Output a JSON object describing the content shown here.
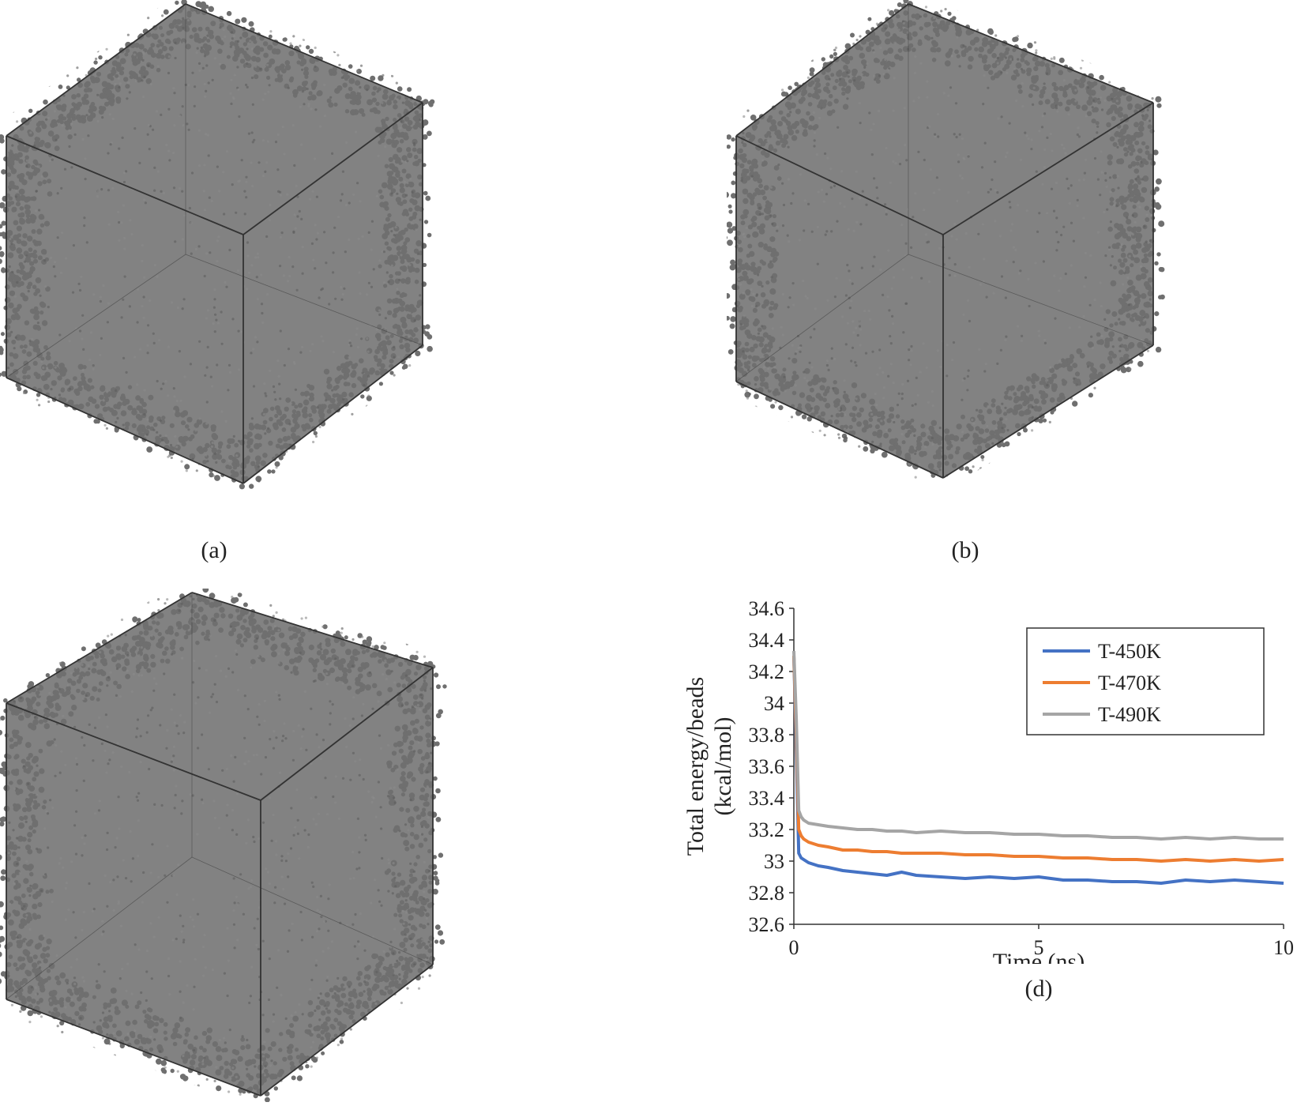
{
  "panels": {
    "a": {
      "caption": "(a)"
    },
    "b": {
      "caption": "(b)"
    },
    "d": {
      "caption": "(d)"
    }
  },
  "bead_color": "#777777",
  "chart_data": {
    "type": "line",
    "xlabel": "Time (ns)",
    "ylabel_lines": [
      "Total energy/beads",
      "(kcal/mol)"
    ],
    "xlim": [
      0,
      10
    ],
    "ylim": [
      32.6,
      34.6
    ],
    "xticks": [
      0,
      5,
      10
    ],
    "yticks": [
      32.6,
      32.8,
      33,
      33.2,
      33.4,
      33.6,
      33.8,
      34,
      34.2,
      34.4,
      34.6
    ],
    "ytick_labels": [
      "32.6",
      "32.8",
      "33",
      "33.2",
      "33.4",
      "33.6",
      "33.8",
      "34",
      "34.2",
      "34.4",
      "34.6"
    ],
    "grid": false,
    "legend_position": "top-right",
    "series": [
      {
        "name": "T-450K",
        "color": "#4472C4",
        "x": [
          0,
          0.05,
          0.1,
          0.15,
          0.2,
          0.3,
          0.5,
          0.7,
          1.0,
          1.3,
          1.6,
          1.9,
          2.2,
          2.5,
          3.0,
          3.5,
          4.0,
          4.5,
          5.0,
          5.5,
          6.0,
          6.5,
          7.0,
          7.5,
          8.0,
          8.5,
          9.0,
          9.5,
          10.0
        ],
        "y": [
          34.3,
          33.7,
          33.05,
          33.02,
          33.01,
          32.99,
          32.97,
          32.96,
          32.94,
          32.93,
          32.92,
          32.91,
          32.93,
          32.91,
          32.9,
          32.89,
          32.9,
          32.89,
          32.9,
          32.88,
          32.88,
          32.87,
          32.87,
          32.86,
          32.88,
          32.87,
          32.88,
          32.87,
          32.86
        ]
      },
      {
        "name": "T-470K",
        "color": "#ED7D31",
        "x": [
          0,
          0.05,
          0.1,
          0.15,
          0.2,
          0.3,
          0.5,
          0.7,
          1.0,
          1.3,
          1.6,
          1.9,
          2.2,
          2.5,
          3.0,
          3.5,
          4.0,
          4.5,
          5.0,
          5.5,
          6.0,
          6.5,
          7.0,
          7.5,
          8.0,
          8.5,
          9.0,
          9.5,
          10.0
        ],
        "y": [
          34.3,
          33.8,
          33.2,
          33.16,
          33.14,
          33.12,
          33.1,
          33.09,
          33.07,
          33.07,
          33.06,
          33.06,
          33.05,
          33.05,
          33.05,
          33.04,
          33.04,
          33.03,
          33.03,
          33.02,
          33.02,
          33.01,
          33.01,
          33.0,
          33.01,
          33.0,
          33.01,
          33.0,
          33.01
        ]
      },
      {
        "name": "T-490K",
        "color": "#A5A5A5",
        "x": [
          0,
          0.05,
          0.1,
          0.15,
          0.2,
          0.3,
          0.5,
          0.7,
          1.0,
          1.3,
          1.6,
          1.9,
          2.2,
          2.5,
          3.0,
          3.5,
          4.0,
          4.5,
          5.0,
          5.5,
          6.0,
          6.5,
          7.0,
          7.5,
          8.0,
          8.5,
          9.0,
          9.5,
          10.0
        ],
        "y": [
          34.33,
          33.9,
          33.32,
          33.28,
          33.26,
          33.24,
          33.23,
          33.22,
          33.21,
          33.2,
          33.2,
          33.19,
          33.19,
          33.18,
          33.19,
          33.18,
          33.18,
          33.17,
          33.17,
          33.16,
          33.16,
          33.15,
          33.15,
          33.14,
          33.15,
          33.14,
          33.15,
          33.14,
          33.14
        ]
      }
    ]
  }
}
